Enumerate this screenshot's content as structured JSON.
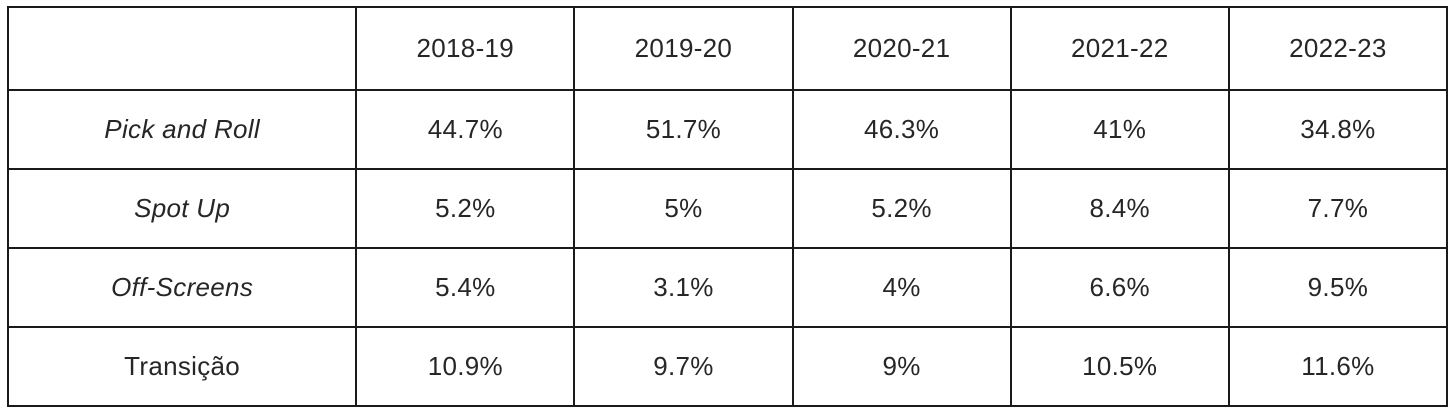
{
  "chart_data": {
    "type": "table",
    "title": "",
    "columns": [
      "",
      "2018-19",
      "2019-20",
      "2020-21",
      "2021-22",
      "2022-23"
    ],
    "highlighted_column": "2022-23",
    "rows": [
      {
        "label": "Pick and Roll",
        "values": [
          "44.7%",
          "51.7%",
          "46.3%",
          "41%",
          "34.8%"
        ]
      },
      {
        "label": "Spot Up",
        "values": [
          "5.2%",
          "5%",
          "5.2%",
          "8.4%",
          "7.7%"
        ]
      },
      {
        "label": "Off-Screens",
        "values": [
          "5.4%",
          "3.1%",
          "4%",
          "6.6%",
          "9.5%"
        ]
      },
      {
        "label": "Transição",
        "values": [
          "10.9%",
          "9.7%",
          "9%",
          "10.5%",
          "11.6%"
        ]
      }
    ],
    "numeric_series": [
      {
        "name": "Pick and Roll",
        "values": [
          44.7,
          51.7,
          46.3,
          41,
          34.8
        ]
      },
      {
        "name": "Spot Up",
        "values": [
          5.2,
          5,
          5.2,
          8.4,
          7.7
        ]
      },
      {
        "name": "Off-Screens",
        "values": [
          5.4,
          3.1,
          4,
          6.6,
          9.5
        ]
      },
      {
        "name": "Transição",
        "values": [
          10.9,
          9.7,
          9,
          10.5,
          11.6
        ]
      }
    ],
    "unit": "%"
  },
  "colors": {
    "border": "#1a1a1a",
    "text": "#262626",
    "background": "#ffffff"
  }
}
